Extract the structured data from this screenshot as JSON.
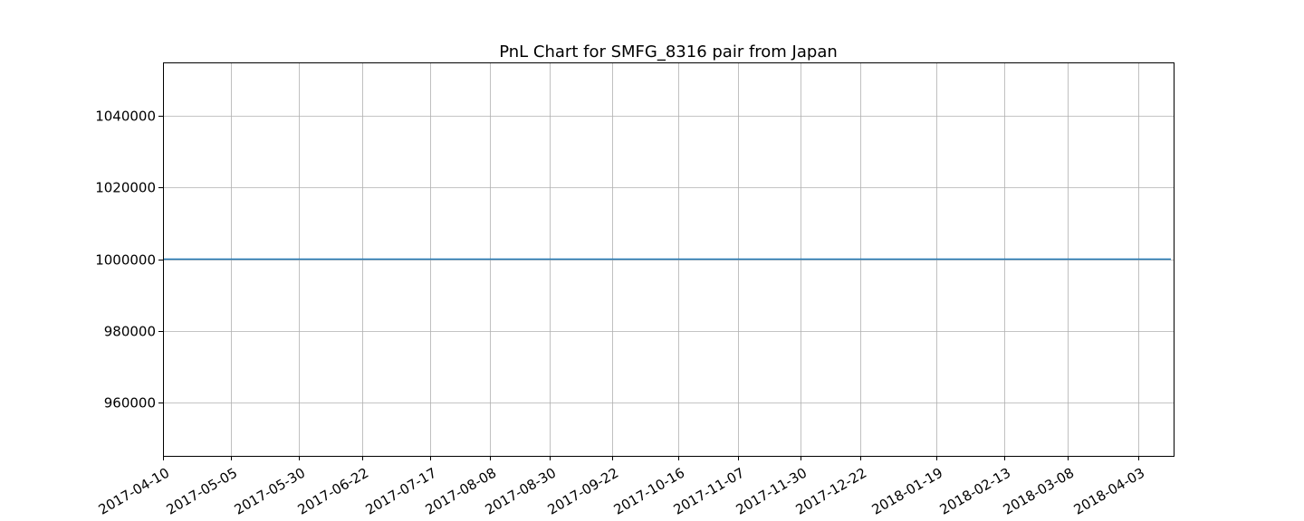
{
  "chart_data": {
    "type": "line",
    "title": "PnL Chart for SMFG_8316 pair from Japan",
    "xlabel": "",
    "ylabel": "",
    "x_scale": "date",
    "xlim": [
      "2017-04-10",
      "2018-04-16"
    ],
    "ylim": [
      945000,
      1055000
    ],
    "grid": true,
    "legend": "none",
    "x_ticks": [
      "2017-04-10",
      "2017-05-05",
      "2017-05-30",
      "2017-06-22",
      "2017-07-17",
      "2017-08-08",
      "2017-08-30",
      "2017-09-22",
      "2017-10-16",
      "2017-11-07",
      "2017-11-30",
      "2017-12-22",
      "2018-01-19",
      "2018-02-13",
      "2018-03-08",
      "2018-04-03"
    ],
    "y_ticks": [
      960000,
      980000,
      1000000,
      1020000,
      1040000
    ],
    "y_tick_labels": [
      "960000",
      "980000",
      "1000000",
      "1020000",
      "1040000"
    ],
    "series": [
      {
        "color": "#1f77b4",
        "x": [
          "2017-04-10",
          "2018-04-15"
        ],
        "y": [
          1000000,
          1000000
        ]
      }
    ]
  }
}
